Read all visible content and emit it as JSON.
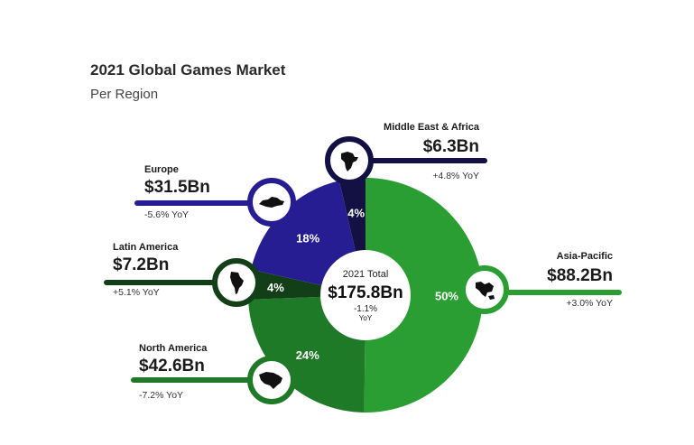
{
  "header": {
    "title": "2021 Global Games Market",
    "subtitle": "Per Region"
  },
  "chart_data": {
    "type": "pie",
    "variant": "donut",
    "title": "2021 Global Games Market",
    "subtitle": "Per Region",
    "center": {
      "label": "2021 Total",
      "value": "$175.8Bn",
      "change": "-1.1%",
      "change_unit": "YoY"
    },
    "slices": [
      {
        "region": "Asia-Pacific",
        "value": "$88.2Bn",
        "amount": 88.2,
        "percent": 50,
        "percent_label": "50%",
        "yoy": "+3.0% YoY",
        "color": "#2a9d33"
      },
      {
        "region": "North America",
        "value": "$42.6Bn",
        "amount": 42.6,
        "percent": 24,
        "percent_label": "24%",
        "yoy": "-7.2% YoY",
        "color": "#1f7a28"
      },
      {
        "region": "Latin America",
        "value": "$7.2Bn",
        "amount": 7.2,
        "percent": 4,
        "percent_label": "4%",
        "yoy": "+5.1% YoY",
        "color": "#123f17"
      },
      {
        "region": "Europe",
        "value": "$31.5Bn",
        "amount": 31.5,
        "percent": 18,
        "percent_label": "18%",
        "yoy": "-5.6% YoY",
        "color": "#271d92"
      },
      {
        "region": "Middle East & Africa",
        "value": "$6.3Bn",
        "amount": 6.3,
        "percent": 4,
        "percent_label": "4%",
        "yoy": "+4.8% YoY",
        "color": "#131044"
      }
    ],
    "legend": "callouts"
  }
}
